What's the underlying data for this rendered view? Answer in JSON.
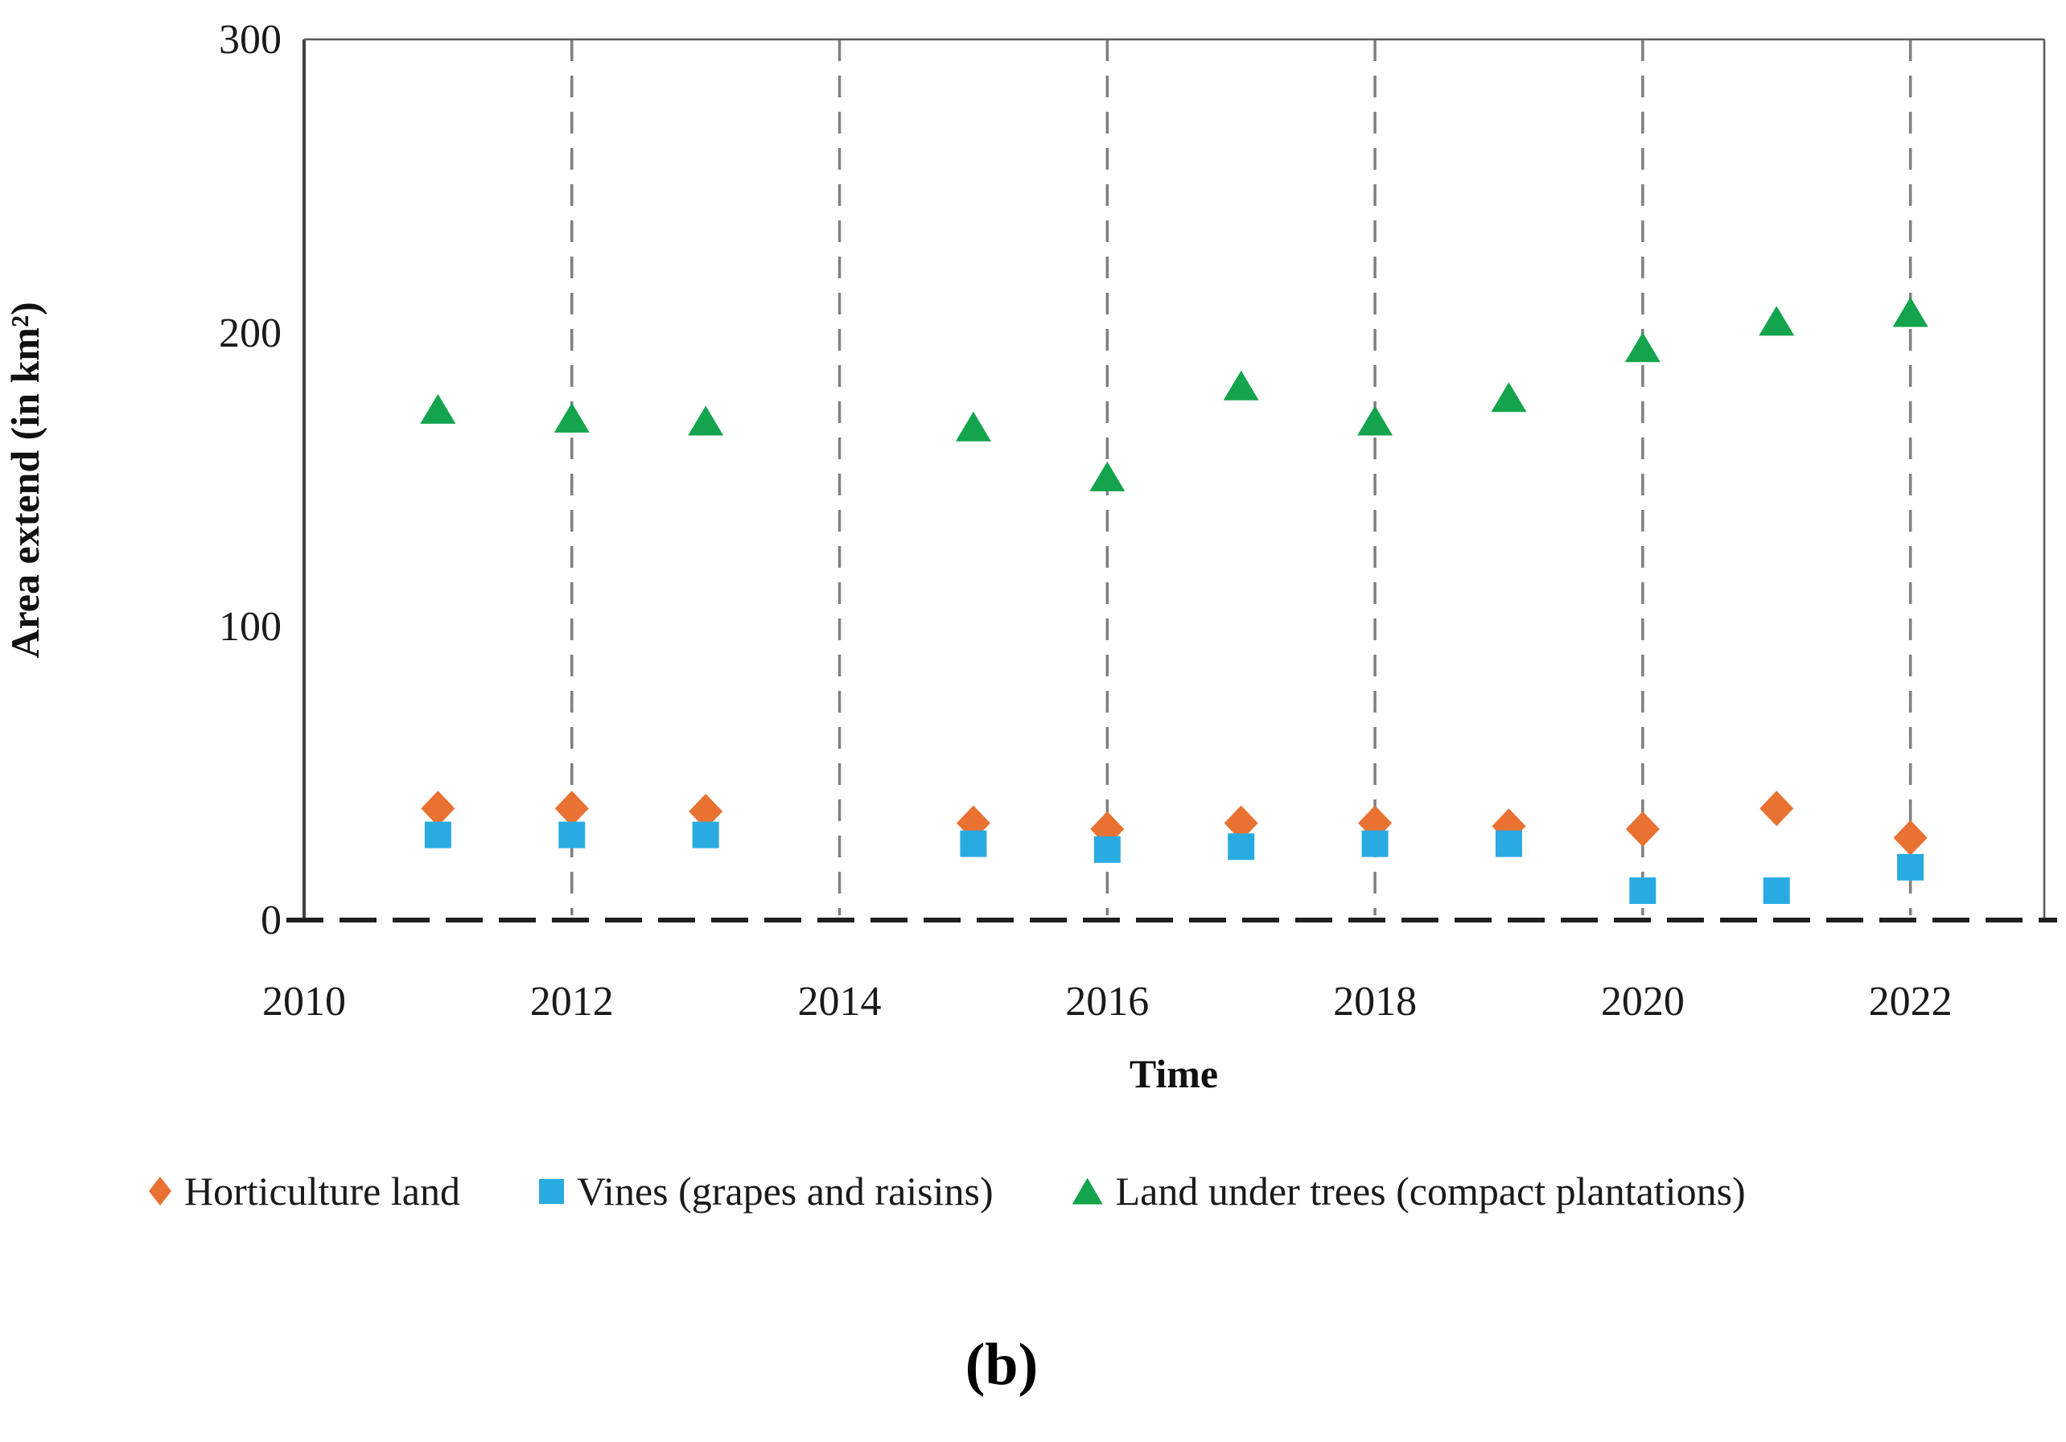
{
  "figure": {
    "caption": "(b)",
    "background": "#ffffff"
  },
  "chart_data": {
    "type": "scatter",
    "title": "",
    "xlabel": "Time",
    "ylabel": "Area extend (in km²)",
    "x_range": [
      2010,
      2023
    ],
    "ylim": [
      0,
      300
    ],
    "x_ticks": [
      2010,
      2012,
      2014,
      2016,
      2018,
      2020,
      2022
    ],
    "y_ticks": [
      0,
      100,
      200,
      300
    ],
    "x_gridlines": [
      2012,
      2014,
      2016,
      2018,
      2020,
      2022
    ],
    "grid": "vertical-dashed",
    "legend_position": "bottom",
    "x": [
      2011,
      2012,
      2013,
      2015,
      2016,
      2017,
      2018,
      2019,
      2020,
      2021,
      2022
    ],
    "series": [
      {
        "name": "Horticulture land",
        "marker": "diamond",
        "color": "#E97132",
        "values": [
          38,
          38,
          37,
          33,
          31,
          33,
          33,
          32,
          31,
          38,
          28
        ]
      },
      {
        "name": "Vines (grapes and raisins)",
        "marker": "square",
        "color": "#29ABE2",
        "values": [
          29,
          29,
          29,
          26,
          24,
          25,
          26,
          26,
          10,
          10,
          18
        ]
      },
      {
        "name": "Land under trees (compact plantations)",
        "marker": "triangle",
        "color": "#14A44D",
        "values": [
          174,
          171,
          170,
          168,
          151,
          182,
          170,
          178,
          195,
          204,
          207
        ]
      }
    ],
    "colors": {
      "gridline": "#7F7F7F",
      "axis_bottom": "#1f1f1f",
      "axis_left": "#3f3f3f",
      "border": "#595959",
      "text": "#1a1a1a"
    }
  }
}
